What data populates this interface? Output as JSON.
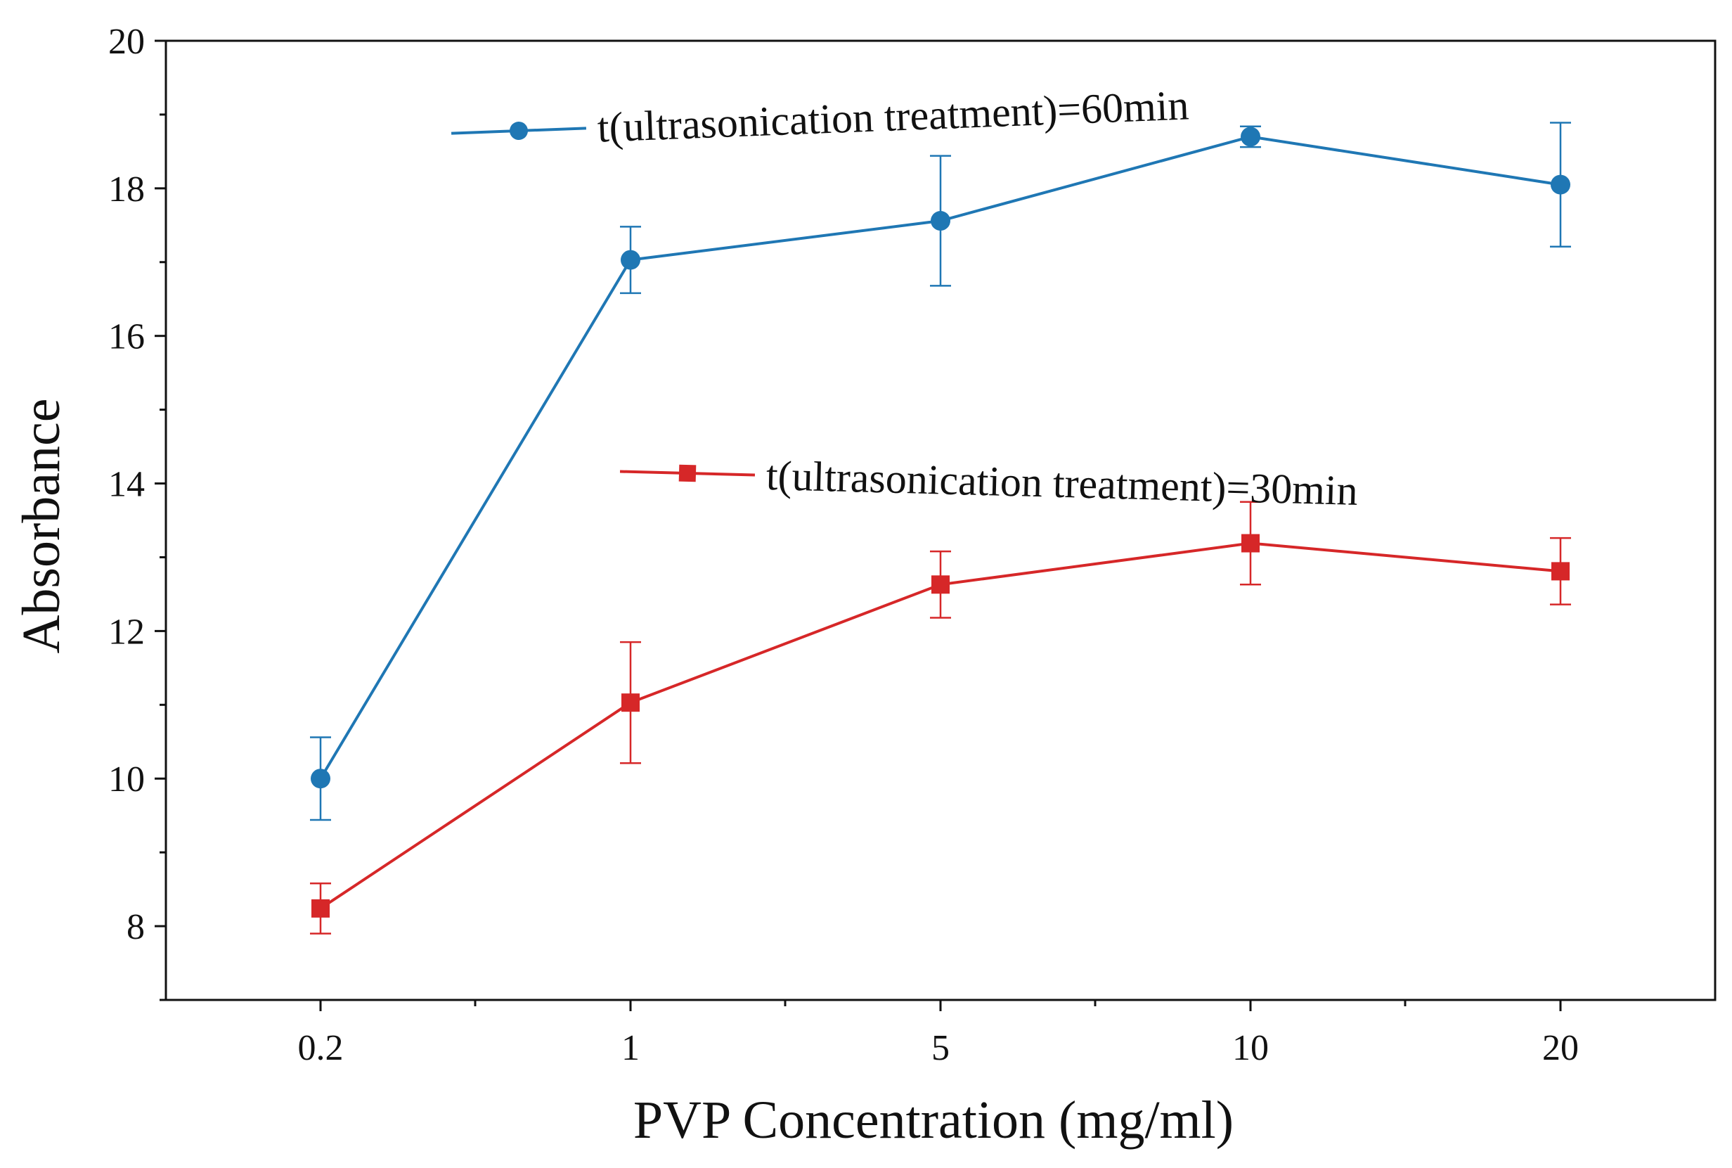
{
  "chart_data": {
    "type": "line",
    "title": "",
    "xlabel": "PVP Concentration (mg/ml)",
    "ylabel": "Absorbance",
    "categories": [
      "0.2",
      "1",
      "5",
      "10",
      "20"
    ],
    "ylim": [
      7,
      20
    ],
    "yticks": [
      8,
      10,
      12,
      14,
      16,
      18,
      20
    ],
    "grid": false,
    "legend_position": "inline",
    "series": [
      {
        "name": "t(ultrasonication treatment)=60min",
        "color": "#1f77b4",
        "marker": "circle",
        "values": [
          10.0,
          17.03,
          17.56,
          18.7,
          18.05
        ],
        "errors": [
          0.56,
          0.45,
          0.88,
          0.14,
          0.84
        ]
      },
      {
        "name": "t(ultrasonication treatment)=30min",
        "color": "#d62728",
        "marker": "square",
        "values": [
          8.24,
          11.03,
          12.63,
          13.19,
          12.81
        ],
        "errors": [
          0.34,
          0.82,
          0.45,
          0.56,
          0.45
        ]
      }
    ]
  }
}
